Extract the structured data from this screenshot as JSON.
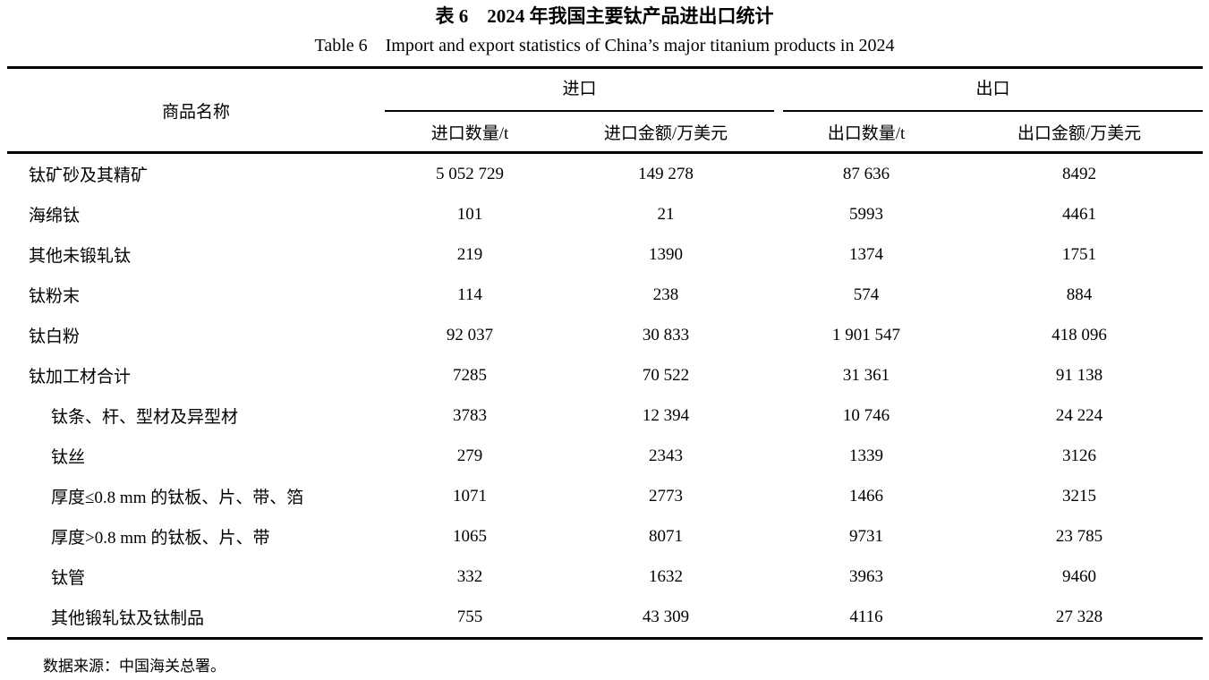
{
  "caption": {
    "title_zh": "表 6 2024 年我国主要钛产品进出口统计",
    "title_en": "Table 6 Import and export statistics of China’s major titanium products in 2024"
  },
  "table": {
    "col_product": "商品名称",
    "group_import": "进口",
    "group_export": "出口",
    "sub_headers": [
      "进口数量/t",
      "进口金额/万美元",
      "出口数量/t",
      "出口金额/万美元"
    ],
    "rows": [
      {
        "name": "钛矿砂及其精矿",
        "import_qty": "5 052 729",
        "import_val": "149 278",
        "export_qty": "87 636",
        "export_val": "8492"
      },
      {
        "name": "海绵钛",
        "import_qty": "101",
        "import_val": "21",
        "export_qty": "5993",
        "export_val": "4461"
      },
      {
        "name": "其他未锻轧钛",
        "import_qty": "219",
        "import_val": "1390",
        "export_qty": "1374",
        "export_val": "1751"
      },
      {
        "name": "钛粉末",
        "import_qty": "114",
        "import_val": "238",
        "export_qty": "574",
        "export_val": "884"
      },
      {
        "name": "钛白粉",
        "import_qty": "92 037",
        "import_val": "30 833",
        "export_qty": "1 901 547",
        "export_val": "418 096"
      },
      {
        "name": "钛加工材合计",
        "import_qty": "7285",
        "import_val": "70 522",
        "export_qty": "31 361",
        "export_val": "91 138"
      },
      {
        "name": "钛条、杆、型材及异型材",
        "import_qty": "3783",
        "import_val": "12 394",
        "export_qty": "10 746",
        "export_val": "24 224"
      },
      {
        "name": "钛丝",
        "import_qty": "279",
        "import_val": "2343",
        "export_qty": "1339",
        "export_val": "3126"
      },
      {
        "name": "厚度≤0.8 mm 的钛板、片、带、箔",
        "import_qty": "1071",
        "import_val": "2773",
        "export_qty": "1466",
        "export_val": "3215"
      },
      {
        "name": "厚度>0.8 mm 的钛板、片、带",
        "import_qty": "1065",
        "import_val": "8071",
        "export_qty": "9731",
        "export_val": "23 785"
      },
      {
        "name": "钛管",
        "import_qty": "332",
        "import_val": "1632",
        "export_qty": "3963",
        "export_val": "9460"
      },
      {
        "name": "其他锻轧钛及钛制品",
        "import_qty": "755",
        "import_val": "43 309",
        "export_qty": "4116",
        "export_val": "27 328"
      }
    ]
  },
  "footer": {
    "source_note": "数据来源：中国海关总署。"
  }
}
